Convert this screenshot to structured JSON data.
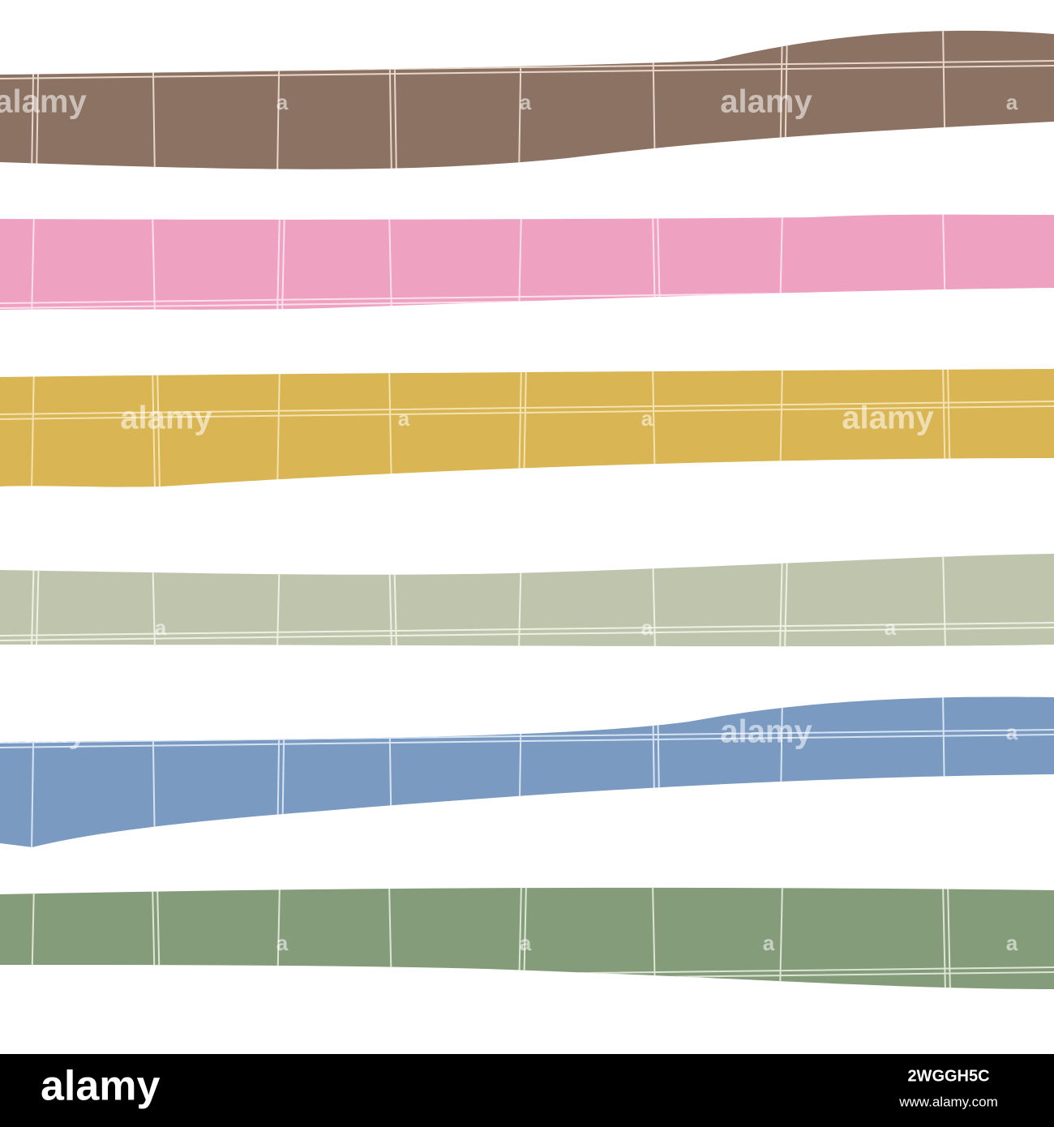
{
  "watermark": {
    "logo": "alamy",
    "mark": "a"
  },
  "footer": {
    "logo": "alamy",
    "image_id": "2WGGH5C",
    "url": "www.alamy.com"
  }
}
